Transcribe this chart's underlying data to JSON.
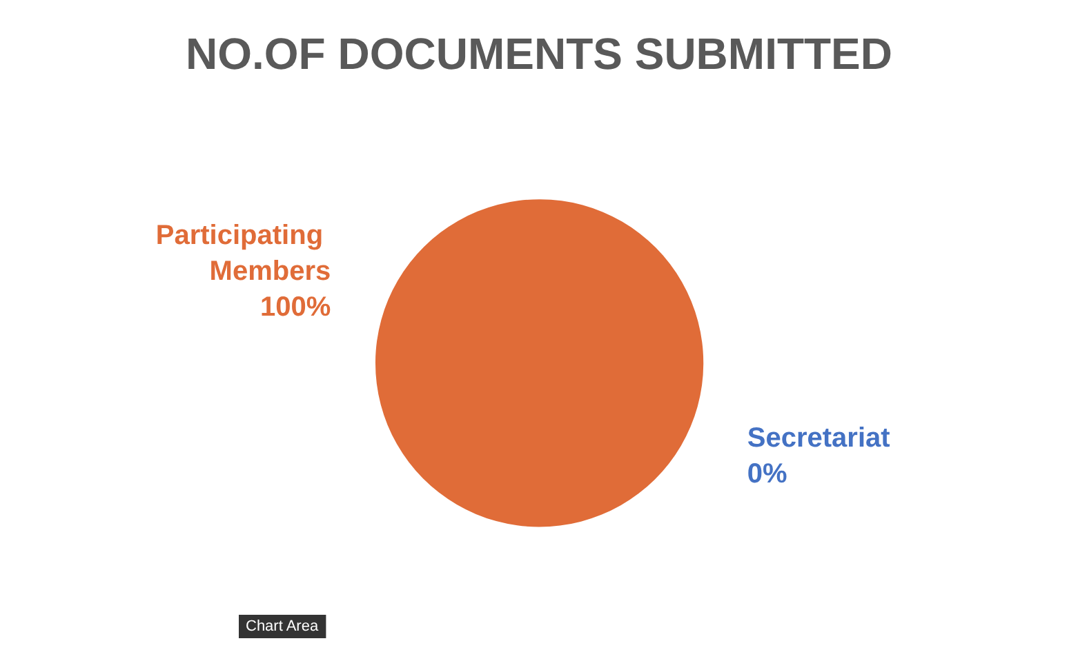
{
  "chart_data": {
    "type": "pie",
    "title": "NO.OF DOCUMENTS SUBMITTED",
    "categories": [
      "Participating Members",
      "Secretariat"
    ],
    "values": [
      100,
      0
    ],
    "colors": [
      "#e06c38",
      "#4472c4"
    ],
    "value_labels": [
      "100%",
      "0%"
    ],
    "annotations": [
      "Chart Area"
    ],
    "legend": false
  }
}
